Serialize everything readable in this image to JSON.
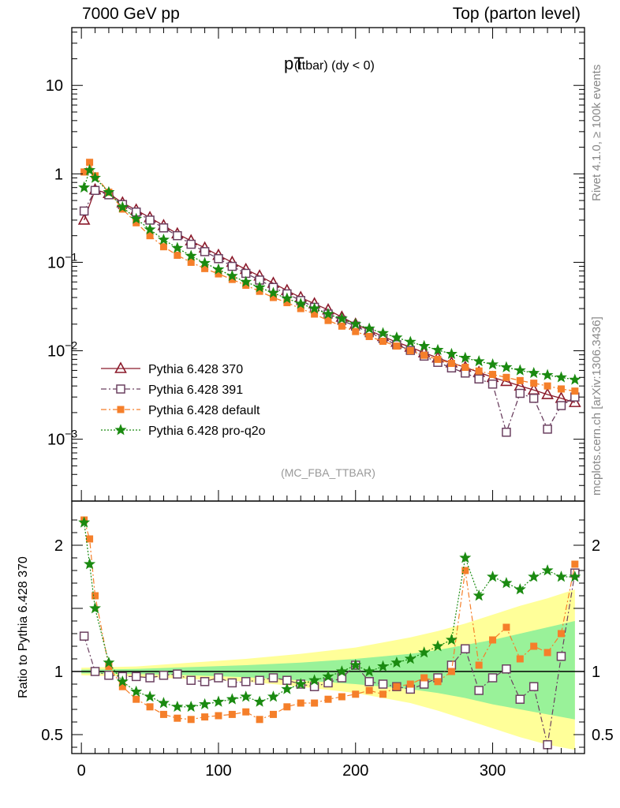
{
  "header": {
    "left": "7000 GeV pp",
    "right": "Top (parton level)"
  },
  "side_labels": {
    "rivet": "Rivet 4.1.0, ≥ 100k events",
    "mcplots": "mcplots.cern.ch [arXiv:1306.3436]"
  },
  "colors": {
    "p370": "#8b1a2b",
    "p391": "#6b4060",
    "default": "#f57f2a",
    "proq2o": "#1a8a10",
    "band_yellow": "#ffff99",
    "band_green": "#99f299"
  },
  "chart_data": [
    {
      "type": "line",
      "title": "pT (ttbar) (dy < 0)",
      "title_main": "pT",
      "title_sub": "(ttbar) (dy < 0)",
      "analysis_label": "(MC_FBA_TTBAR)",
      "yscale": "log",
      "ylim": [
        0.0002,
        45
      ],
      "xlim": [
        -7,
        367
      ],
      "y_ticks": [
        {
          "value": 10,
          "label": "10"
        },
        {
          "value": 1,
          "label": "1"
        },
        {
          "value": 0.1,
          "label": "10",
          "sup": "−1"
        },
        {
          "value": 0.01,
          "label": "10",
          "sup": "−2"
        },
        {
          "value": 0.001,
          "label": "10",
          "sup": "−3"
        }
      ],
      "legend_position": "bottom-left",
      "series": [
        {
          "name": "Pythia 6.428 370",
          "key": "p370",
          "marker": "triangle-open",
          "line": "solid",
          "x": [
            2,
            10,
            20,
            30,
            40,
            50,
            60,
            70,
            80,
            90,
            100,
            110,
            120,
            130,
            140,
            150,
            160,
            170,
            180,
            190,
            200,
            210,
            220,
            230,
            240,
            250,
            260,
            270,
            280,
            290,
            300,
            310,
            320,
            330,
            340,
            350,
            360
          ],
          "y": [
            0.3,
            0.66,
            0.6,
            0.47,
            0.39,
            0.32,
            0.26,
            0.21,
            0.175,
            0.145,
            0.12,
            0.1,
            0.083,
            0.07,
            0.058,
            0.048,
            0.04,
            0.034,
            0.029,
            0.024,
            0.02,
            0.017,
            0.0145,
            0.0125,
            0.011,
            0.0095,
            0.0083,
            0.0073,
            0.0065,
            0.0057,
            0.005,
            0.0045,
            0.004,
            0.0036,
            0.0032,
            0.0029,
            0.0026
          ]
        },
        {
          "name": "Pythia 6.428 391",
          "key": "p391",
          "marker": "square-open",
          "line": "dashdot",
          "x": [
            2,
            10,
            20,
            30,
            40,
            50,
            60,
            70,
            80,
            90,
            100,
            110,
            120,
            130,
            140,
            150,
            160,
            170,
            180,
            190,
            200,
            210,
            220,
            230,
            240,
            250,
            260,
            270,
            280,
            290,
            300,
            310,
            320,
            330,
            340,
            350,
            360
          ],
          "y": [
            0.38,
            0.65,
            0.58,
            0.45,
            0.37,
            0.3,
            0.245,
            0.2,
            0.16,
            0.132,
            0.11,
            0.09,
            0.075,
            0.063,
            0.052,
            0.044,
            0.037,
            0.031,
            0.026,
            0.022,
            0.019,
            0.016,
            0.0137,
            0.0117,
            0.0101,
            0.0087,
            0.0074,
            0.0064,
            0.0056,
            0.0048,
            0.0042,
            0.0012,
            0.0033,
            0.0029,
            0.0013,
            0.0024,
            0.003
          ]
        },
        {
          "name": "Pythia 6.428 default",
          "key": "default",
          "marker": "square-filled",
          "line": "dashdot",
          "x": [
            2,
            6,
            10,
            20,
            30,
            40,
            50,
            60,
            70,
            80,
            90,
            100,
            110,
            120,
            130,
            140,
            150,
            160,
            170,
            180,
            190,
            200,
            210,
            220,
            230,
            240,
            250,
            260,
            270,
            280,
            290,
            300,
            310,
            320,
            330,
            340,
            350,
            360
          ],
          "y": [
            1.05,
            1.35,
            0.95,
            0.62,
            0.4,
            0.28,
            0.2,
            0.15,
            0.12,
            0.1,
            0.085,
            0.074,
            0.064,
            0.055,
            0.047,
            0.04,
            0.035,
            0.03,
            0.026,
            0.022,
            0.019,
            0.0165,
            0.0145,
            0.0128,
            0.0113,
            0.01,
            0.0089,
            0.008,
            0.0072,
            0.0065,
            0.0059,
            0.0054,
            0.005,
            0.0046,
            0.0043,
            0.004,
            0.0037,
            0.0035
          ]
        },
        {
          "name": "Pythia 6.428 pro-q2o",
          "key": "proq2o",
          "marker": "star",
          "line": "dotted",
          "x": [
            2,
            6,
            10,
            20,
            30,
            40,
            50,
            60,
            70,
            80,
            90,
            100,
            110,
            120,
            130,
            140,
            150,
            160,
            170,
            180,
            190,
            200,
            210,
            220,
            230,
            240,
            250,
            260,
            270,
            280,
            290,
            300,
            310,
            320,
            330,
            340,
            350,
            360
          ],
          "y": [
            0.7,
            1.1,
            0.9,
            0.62,
            0.42,
            0.31,
            0.235,
            0.18,
            0.145,
            0.118,
            0.098,
            0.083,
            0.07,
            0.06,
            0.052,
            0.045,
            0.039,
            0.034,
            0.03,
            0.026,
            0.023,
            0.02,
            0.0178,
            0.0158,
            0.0141,
            0.0126,
            0.0113,
            0.0102,
            0.0092,
            0.0083,
            0.0076,
            0.007,
            0.0065,
            0.006,
            0.0056,
            0.0053,
            0.005,
            0.0047
          ]
        }
      ]
    },
    {
      "type": "line",
      "ylabel": "Ratio to Pythia 6.428 370",
      "xlim": [
        -7,
        367
      ],
      "ylim": [
        0.35,
        2.35
      ],
      "x_ticks": [
        0,
        100,
        200,
        300
      ],
      "y_ticks": [
        {
          "value": 2,
          "label": "2"
        },
        {
          "value": 1,
          "label": "1"
        },
        {
          "value": 0.5,
          "label": "0.5"
        }
      ],
      "reference_line": 1,
      "band": {
        "x": [
          0,
          40,
          80,
          120,
          160,
          200,
          240,
          260,
          280,
          300,
          320,
          340,
          360
        ],
        "yellow_lo": [
          0.97,
          0.96,
          0.94,
          0.92,
          0.88,
          0.83,
          0.75,
          0.69,
          0.62,
          0.55,
          0.48,
          0.42,
          0.38
        ],
        "yellow_hi": [
          1.03,
          1.04,
          1.07,
          1.1,
          1.14,
          1.19,
          1.27,
          1.32,
          1.38,
          1.45,
          1.52,
          1.58,
          1.65
        ],
        "green_lo": [
          0.985,
          0.98,
          0.97,
          0.955,
          0.93,
          0.9,
          0.86,
          0.83,
          0.79,
          0.74,
          0.7,
          0.66,
          0.62
        ],
        "green_hi": [
          1.015,
          1.02,
          1.035,
          1.05,
          1.07,
          1.1,
          1.14,
          1.17,
          1.21,
          1.25,
          1.3,
          1.35,
          1.4
        ]
      },
      "series": [
        {
          "name": "Pythia 6.428 391",
          "key": "p391",
          "x": [
            2,
            10,
            20,
            30,
            40,
            50,
            60,
            70,
            80,
            90,
            100,
            110,
            120,
            130,
            140,
            150,
            160,
            170,
            180,
            190,
            200,
            210,
            220,
            230,
            240,
            250,
            260,
            270,
            280,
            290,
            300,
            310,
            320,
            330,
            340,
            350,
            360
          ],
          "y": [
            1.28,
            1.0,
            0.97,
            0.96,
            0.96,
            0.95,
            0.97,
            0.98,
            0.93,
            0.92,
            0.95,
            0.91,
            0.92,
            0.93,
            0.95,
            0.93,
            0.9,
            0.88,
            0.91,
            0.95,
            1.05,
            0.92,
            0.9,
            0.88,
            0.86,
            0.9,
            0.95,
            1.05,
            1.18,
            0.85,
            0.95,
            1.02,
            0.78,
            0.88,
            0.42,
            1.12,
            1.78
          ]
        },
        {
          "name": "Pythia 6.428 default",
          "key": "default",
          "x": [
            2,
            6,
            10,
            20,
            30,
            40,
            50,
            60,
            70,
            80,
            90,
            100,
            110,
            120,
            130,
            140,
            150,
            160,
            170,
            180,
            190,
            200,
            210,
            220,
            230,
            240,
            250,
            260,
            270,
            280,
            290,
            300,
            310,
            320,
            330,
            340,
            350,
            360
          ],
          "y": [
            2.2,
            2.05,
            1.6,
            1.04,
            0.88,
            0.78,
            0.72,
            0.66,
            0.63,
            0.62,
            0.64,
            0.65,
            0.66,
            0.68,
            0.62,
            0.66,
            0.72,
            0.75,
            0.75,
            0.78,
            0.8,
            0.82,
            0.85,
            0.82,
            0.88,
            0.9,
            0.95,
            0.92,
            1.0,
            1.8,
            1.05,
            1.25,
            1.35,
            1.1,
            1.2,
            1.15,
            1.3,
            1.85
          ]
        },
        {
          "name": "Pythia 6.428 pro-q2o",
          "key": "proq2o",
          "x": [
            2,
            6,
            10,
            20,
            30,
            40,
            50,
            60,
            70,
            80,
            90,
            100,
            110,
            120,
            130,
            140,
            150,
            160,
            170,
            180,
            190,
            200,
            210,
            220,
            230,
            240,
            250,
            260,
            270,
            280,
            290,
            300,
            310,
            320,
            330,
            340,
            350,
            360
          ],
          "y": [
            2.18,
            1.85,
            1.5,
            1.07,
            0.92,
            0.84,
            0.8,
            0.75,
            0.72,
            0.72,
            0.74,
            0.76,
            0.78,
            0.8,
            0.76,
            0.8,
            0.86,
            0.9,
            0.93,
            0.96,
            1.0,
            1.05,
            1.0,
            1.04,
            1.07,
            1.1,
            1.15,
            1.2,
            1.25,
            1.9,
            1.6,
            1.75,
            1.7,
            1.65,
            1.75,
            1.8,
            1.75,
            1.75
          ]
        }
      ]
    }
  ]
}
